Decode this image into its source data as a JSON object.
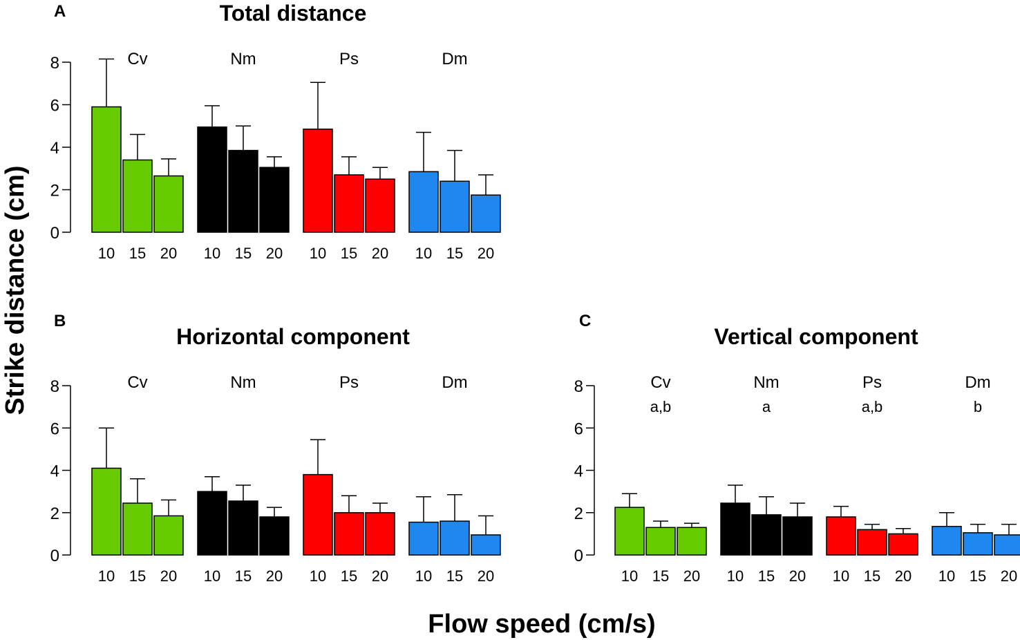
{
  "figure": {
    "ylabel": "Strike distance (cm)",
    "xlabel": "Flow speed (cm/s)"
  },
  "colors": {
    "Cv": "#66cc00",
    "Nm": "#000000",
    "Ps": "#ff0000",
    "Dm": "#1e88f0",
    "axis": "#000000"
  },
  "chart_data": [
    {
      "panel": "A",
      "type": "bar",
      "title": "Total distance",
      "ylim": [
        0,
        8
      ],
      "yticks": [
        0,
        2,
        4,
        6,
        8
      ],
      "xticks": [
        "10",
        "15",
        "20"
      ],
      "groups": [
        {
          "name": "Cv",
          "letter": "",
          "values": [
            5.9,
            3.4,
            2.65
          ],
          "errors": [
            2.25,
            1.2,
            0.8
          ]
        },
        {
          "name": "Nm",
          "letter": "",
          "values": [
            4.95,
            3.85,
            3.05
          ],
          "errors": [
            1.0,
            1.15,
            0.5
          ]
        },
        {
          "name": "Ps",
          "letter": "",
          "values": [
            4.85,
            2.7,
            2.5
          ],
          "errors": [
            2.2,
            0.85,
            0.55
          ]
        },
        {
          "name": "Dm",
          "letter": "",
          "values": [
            2.85,
            2.4,
            1.75
          ],
          "errors": [
            1.85,
            1.45,
            0.95
          ]
        }
      ]
    },
    {
      "panel": "B",
      "type": "bar",
      "title": "Horizontal component",
      "ylim": [
        0,
        8
      ],
      "yticks": [
        0,
        2,
        4,
        6,
        8
      ],
      "xticks": [
        "10",
        "15",
        "20"
      ],
      "groups": [
        {
          "name": "Cv",
          "letter": "",
          "values": [
            4.1,
            2.45,
            1.85
          ],
          "errors": [
            1.9,
            1.15,
            0.75
          ]
        },
        {
          "name": "Nm",
          "letter": "",
          "values": [
            3.0,
            2.55,
            1.8
          ],
          "errors": [
            0.7,
            0.75,
            0.45
          ]
        },
        {
          "name": "Ps",
          "letter": "",
          "values": [
            3.8,
            2.0,
            2.0
          ],
          "errors": [
            1.65,
            0.8,
            0.45
          ]
        },
        {
          "name": "Dm",
          "letter": "",
          "values": [
            1.55,
            1.6,
            0.95
          ],
          "errors": [
            1.2,
            1.25,
            0.9
          ]
        }
      ]
    },
    {
      "panel": "C",
      "type": "bar",
      "title": "Vertical component",
      "ylim": [
        0,
        8
      ],
      "yticks": [
        0,
        2,
        4,
        6,
        8
      ],
      "xticks": [
        "10",
        "15",
        "20"
      ],
      "groups": [
        {
          "name": "Cv",
          "letter": "a,b",
          "values": [
            2.25,
            1.3,
            1.3
          ],
          "errors": [
            0.65,
            0.3,
            0.2
          ]
        },
        {
          "name": "Nm",
          "letter": "a",
          "values": [
            2.45,
            1.9,
            1.8
          ],
          "errors": [
            0.85,
            0.85,
            0.65
          ]
        },
        {
          "name": "Ps",
          "letter": "a,b",
          "values": [
            1.8,
            1.2,
            1.0
          ],
          "errors": [
            0.5,
            0.25,
            0.25
          ]
        },
        {
          "name": "Dm",
          "letter": "b",
          "values": [
            1.35,
            1.05,
            0.95
          ],
          "errors": [
            0.65,
            0.4,
            0.5
          ]
        }
      ]
    }
  ]
}
